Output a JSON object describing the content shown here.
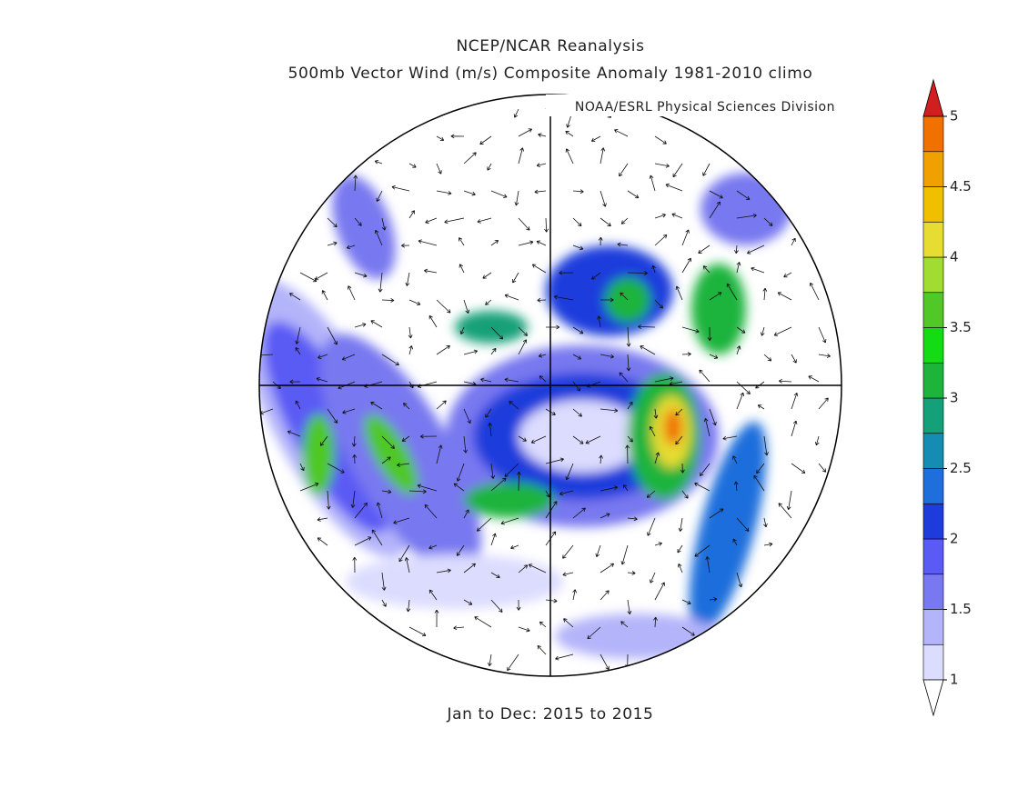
{
  "header": {
    "title": "NCEP/NCAR Reanalysis",
    "subtitle": "500mb Vector Wind (m/s) Composite Anomaly 1981-2010 climo",
    "credit": "NOAA/ESRL Physical Sciences Division"
  },
  "footer": {
    "period": "Jan to Dec: 2015 to 2015"
  },
  "colorbar": {
    "lim": [
      1,
      5
    ],
    "ticks": [
      1,
      1.5,
      2,
      2.5,
      3,
      3.5,
      4,
      4.5,
      5
    ],
    "levels": [
      1,
      1.25,
      1.5,
      1.75,
      2,
      2.25,
      2.5,
      2.75,
      3,
      3.25,
      3.5,
      3.75,
      4,
      4.25,
      4.5,
      4.75,
      5
    ],
    "colors": [
      "#dcdcff",
      "#b4b4fa",
      "#7878f0",
      "#5a5af5",
      "#1e3cdc",
      "#1e6edc",
      "#148cb4",
      "#14a078",
      "#1eb43c",
      "#14dc14",
      "#50c828",
      "#a0dc32",
      "#e6dc32",
      "#f0c000",
      "#f0a000",
      "#f07000"
    ],
    "under_color": "#ffffff",
    "over_color": "#d21e1e"
  }
}
